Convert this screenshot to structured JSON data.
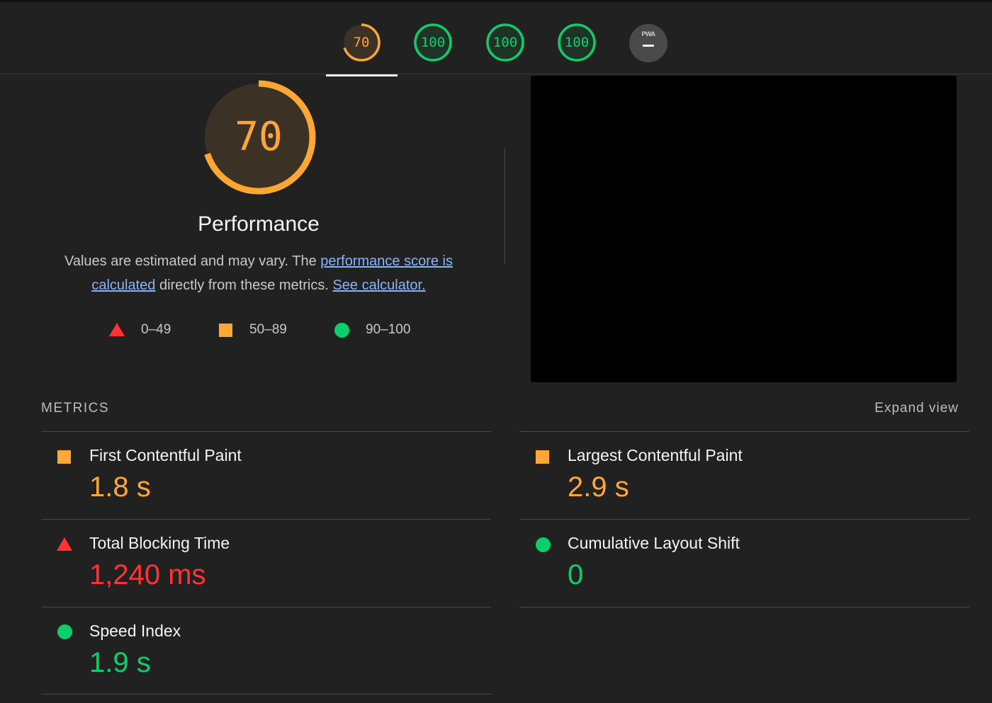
{
  "colors": {
    "fail": "#ff3333",
    "average": "#ffa733",
    "pass": "#0cce6b",
    "link": "#8ab4f8",
    "background": "#212121"
  },
  "tabs": [
    {
      "id": "performance",
      "score": "70",
      "score_value": 70,
      "rating": "average",
      "selected": true
    },
    {
      "id": "accessibility",
      "score": "100",
      "score_value": 100,
      "rating": "pass",
      "selected": false
    },
    {
      "id": "best-practices",
      "score": "100",
      "score_value": 100,
      "rating": "pass",
      "selected": false
    },
    {
      "id": "seo",
      "score": "100",
      "score_value": 100,
      "rating": "pass",
      "selected": false
    }
  ],
  "pwa_tab": {
    "label": "PWA",
    "icon": "dash-icon"
  },
  "performance": {
    "score": "70",
    "score_value": 70,
    "title": "Performance",
    "desc_prefix": "Values are estimated and may vary. The ",
    "desc_link1": "performance score is calculated",
    "desc_middle": " directly from these metrics. ",
    "desc_link2": "See calculator."
  },
  "legend": [
    {
      "icon": "triangle-icon",
      "range": "0–49"
    },
    {
      "icon": "square-icon",
      "range": "50–89"
    },
    {
      "icon": "circle-icon",
      "range": "90–100"
    }
  ],
  "metrics_section": {
    "label": "METRICS",
    "expand_label": "Expand view"
  },
  "metrics": {
    "fcp": {
      "name": "First Contentful Paint",
      "value": "1.8 s",
      "rating": "average"
    },
    "lcp": {
      "name": "Largest Contentful Paint",
      "value": "2.9 s",
      "rating": "average"
    },
    "tbt": {
      "name": "Total Blocking Time",
      "value": "1,240 ms",
      "rating": "fail"
    },
    "cls": {
      "name": "Cumulative Layout Shift",
      "value": "0",
      "rating": "pass"
    },
    "si": {
      "name": "Speed Index",
      "value": "1.9 s",
      "rating": "pass"
    }
  }
}
